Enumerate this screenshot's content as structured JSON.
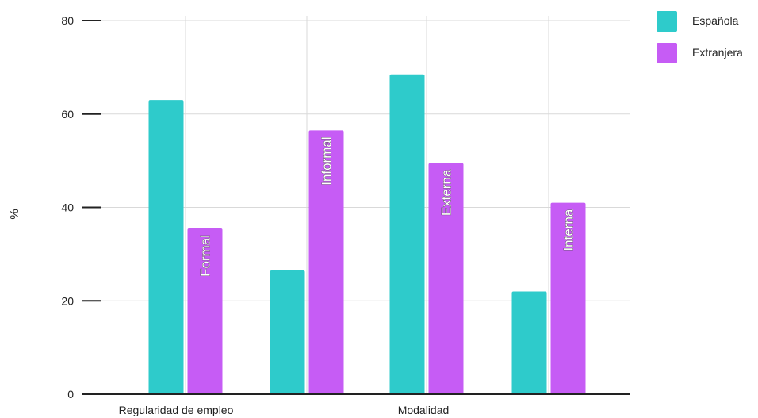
{
  "chart_data": {
    "type": "bar",
    "ylabel": "%",
    "xlabel": "",
    "ylim": [
      0,
      80
    ],
    "yticks": [
      0,
      20,
      40,
      60,
      80
    ],
    "grid": true,
    "legend_position": "top-right",
    "categories": [
      "Formal",
      "Informal",
      "Externa",
      "Interna"
    ],
    "groups": [
      {
        "label": "Regularidad de empleo",
        "categories": [
          "Formal",
          "Informal"
        ]
      },
      {
        "label": "Modalidad",
        "categories": [
          "Externa",
          "Interna"
        ]
      }
    ],
    "series": [
      {
        "name": "Española",
        "color": "#2ECBCB",
        "values": [
          63,
          26.5,
          68.5,
          22
        ]
      },
      {
        "name": "Extranjera",
        "color": "#C65CF5",
        "values": [
          35.5,
          56.5,
          49.5,
          41
        ]
      }
    ]
  }
}
